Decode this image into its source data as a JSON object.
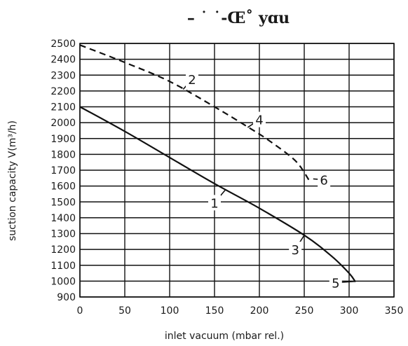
{
  "chart_data": {
    "type": "line",
    "title": "–          ˙ ˙-Œ˚ yɑu",
    "xlabel": "inlet vacuum (mbar rel.)",
    "ylabel": "suction capacity V(m³/h)",
    "xlim": [
      0,
      350
    ],
    "ylim": [
      900,
      2500
    ],
    "x_ticks": [
      0,
      50,
      100,
      150,
      200,
      250,
      300,
      350
    ],
    "y_ticks": [
      900,
      1000,
      1100,
      1200,
      1300,
      1400,
      1500,
      1600,
      1700,
      1800,
      1900,
      2000,
      2100,
      2200,
      2300,
      2400,
      2500
    ],
    "x_tick_labels": [
      "0",
      "50",
      "100",
      "150",
      "200",
      "250",
      "300",
      "350"
    ],
    "y_tick_labels": [
      "900",
      "1000",
      "1100",
      "1200",
      "1300",
      "1400",
      "1500",
      "1600",
      "1700",
      "1800",
      "1900",
      "2000",
      "2100",
      "2200",
      "2300",
      "2400",
      "2500"
    ],
    "grid": true,
    "series": [
      {
        "style": "solid",
        "x": [
          0,
          50,
          100,
          150,
          200,
          250,
          280,
          300,
          307
        ],
        "y": [
          2100,
          1945,
          1780,
          1615,
          1460,
          1290,
          1160,
          1050,
          995
        ]
      },
      {
        "style": "dashed",
        "x": [
          0,
          50,
          100,
          150,
          185,
          210,
          240,
          255
        ],
        "y": [
          2490,
          2380,
          2260,
          2100,
          1980,
          1890,
          1760,
          1640
        ]
      }
    ],
    "annotations": [
      {
        "text": "1",
        "x": 150,
        "y": 1495,
        "ax": 162,
        "ay": 1575
      },
      {
        "text": "2",
        "x": 125,
        "y": 2275,
        "ax": 115,
        "ay": 2210
      },
      {
        "text": "3",
        "x": 240,
        "y": 1200,
        "ax": 250,
        "ay": 1290
      },
      {
        "text": "4",
        "x": 200,
        "y": 2020,
        "ax": 187,
        "ay": 1970
      },
      {
        "text": "5",
        "x": 285,
        "y": 990,
        "ax": 306,
        "ay": 998
      },
      {
        "text": "6",
        "x": 272,
        "y": 1640,
        "ax": 260,
        "ay": 1645
      }
    ]
  }
}
